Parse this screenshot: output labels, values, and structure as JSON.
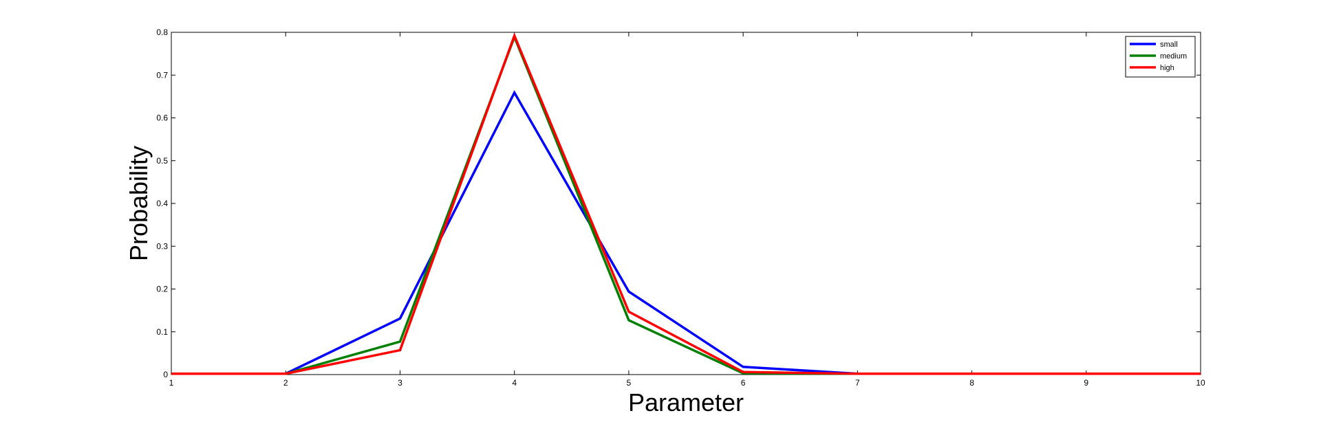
{
  "chart_data": {
    "type": "line",
    "title": "",
    "xlabel": "Parameter",
    "ylabel": "Probability",
    "xlim": [
      1,
      10
    ],
    "ylim": [
      0,
      0.8
    ],
    "x": [
      1,
      2,
      3,
      4,
      5,
      6,
      7,
      8,
      9,
      10
    ],
    "xticks": [
      "1",
      "2",
      "3",
      "4",
      "5",
      "6",
      "7",
      "8",
      "9",
      "10"
    ],
    "yticks": [
      "0",
      "0.1",
      "0.2",
      "0.3",
      "0.4",
      "0.5",
      "0.6",
      "0.7",
      "0.8"
    ],
    "yticks_values": [
      0,
      0.1,
      0.2,
      0.3,
      0.4,
      0.5,
      0.6,
      0.7,
      0.8
    ],
    "grid": false,
    "legend_position": "top-right",
    "series": [
      {
        "name": "small",
        "color": "#0000ff",
        "values": [
          0.002,
          0.002,
          0.131,
          0.659,
          0.194,
          0.018,
          0.002,
          0.002,
          0.002,
          0.002
        ]
      },
      {
        "name": "medium",
        "color": "#008000",
        "values": [
          0.002,
          0.002,
          0.077,
          0.789,
          0.127,
          0.003,
          0.002,
          0.002,
          0.002,
          0.002
        ]
      },
      {
        "name": "high",
        "color": "#ff0000",
        "values": [
          0.002,
          0.002,
          0.057,
          0.792,
          0.147,
          0.006,
          0.002,
          0.002,
          0.002,
          0.002
        ]
      }
    ]
  }
}
